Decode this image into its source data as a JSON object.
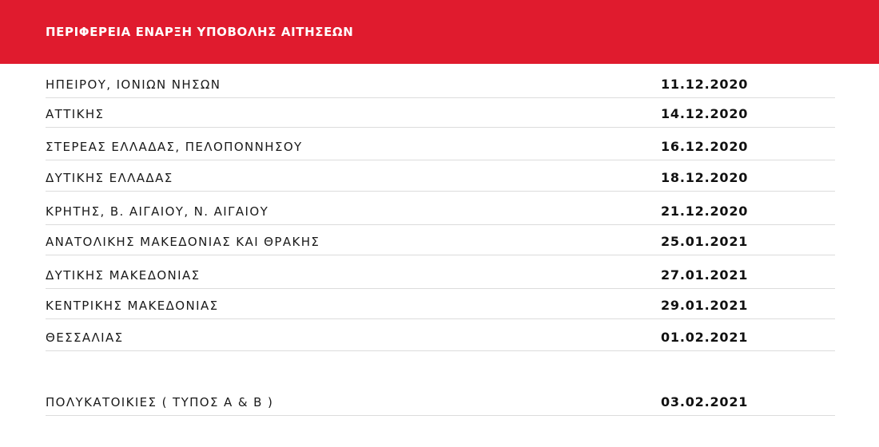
{
  "header": {
    "title": "ΠΕΡΙΦΕΡΕΙΑ ΕΝΑΡΞΗ ΥΠΟΒΟΛΗΣ ΑΙΤΗΣΕΩΝ",
    "background_color": "#e01b2e"
  },
  "rows": [
    {
      "region": "ΗΠΕΙΡΟΥ, ΙΟΝΙΩΝ ΝΗΣΩΝ",
      "date": "11.12.2020"
    },
    {
      "region": "ΑΤΤΙΚΗΣ",
      "date": "14.12.2020"
    },
    {
      "region": "ΣΤΕΡΕΑΣ ΕΛΛΑΔΑΣ, ΠΕΛΟΠΟΝΝΗΣΟΥ",
      "date": "16.12.2020"
    },
    {
      "region": "ΔΥΤΙΚΗΣ ΕΛΛΑΔΑΣ",
      "date": "18.12.2020"
    },
    {
      "region": "ΚΡΗΤΗΣ, Β. ΑΙΓΑΙΟΥ, Ν. ΑΙΓΑΙΟΥ",
      "date": "21.12.2020"
    },
    {
      "region": "ΑΝΑΤΟΛΙΚΗΣ ΜΑΚΕΔΟΝΙΑΣ ΚΑΙ ΘΡΑΚΗΣ",
      "date": "25.01.2021"
    },
    {
      "region": "ΔΥΤΙΚΗΣ ΜΑΚΕΔΟΝΙΑΣ",
      "date": "27.01.2021"
    },
    {
      "region": "ΚΕΝΤΡΙΚΗΣ ΜΑΚΕΔΟΝΙΑΣ",
      "date": "29.01.2021"
    },
    {
      "region": "ΘΕΣΣΑΛΙΑΣ",
      "date": "01.02.2021"
    },
    {
      "region": "ΠΟΛΥΚΑΤΟΙΚΙΕΣ ( ΤΥΠΟΣ Α & Β )",
      "date": "03.02.2021"
    }
  ]
}
